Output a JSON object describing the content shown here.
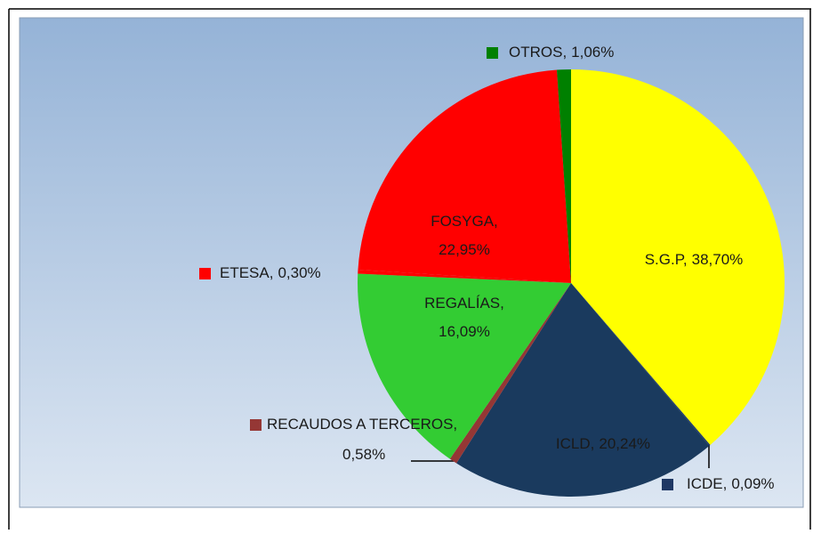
{
  "chart_data": {
    "type": "pie",
    "categories": [
      "S.G.P,",
      "ICDE,",
      "ICLD,",
      "RECAUDOS A TERCEROS,",
      "REGALÍAS,",
      "ETESA,",
      "FOSYGA,",
      "OTROS,"
    ],
    "values": [
      38.7,
      0.09,
      20.24,
      0.58,
      16.09,
      0.3,
      22.95,
      1.06
    ],
    "value_labels": [
      "38,70%",
      "0,09%",
      "20,24%",
      "0,58%",
      "16,09%",
      "0,30%",
      "22,95%",
      "1,06%"
    ],
    "colors": [
      "#ffff00",
      "#1f3864",
      "#1a3a5e",
      "#953735",
      "#33cc33",
      "#ff0000",
      "#ff0000",
      "#008000"
    ]
  }
}
